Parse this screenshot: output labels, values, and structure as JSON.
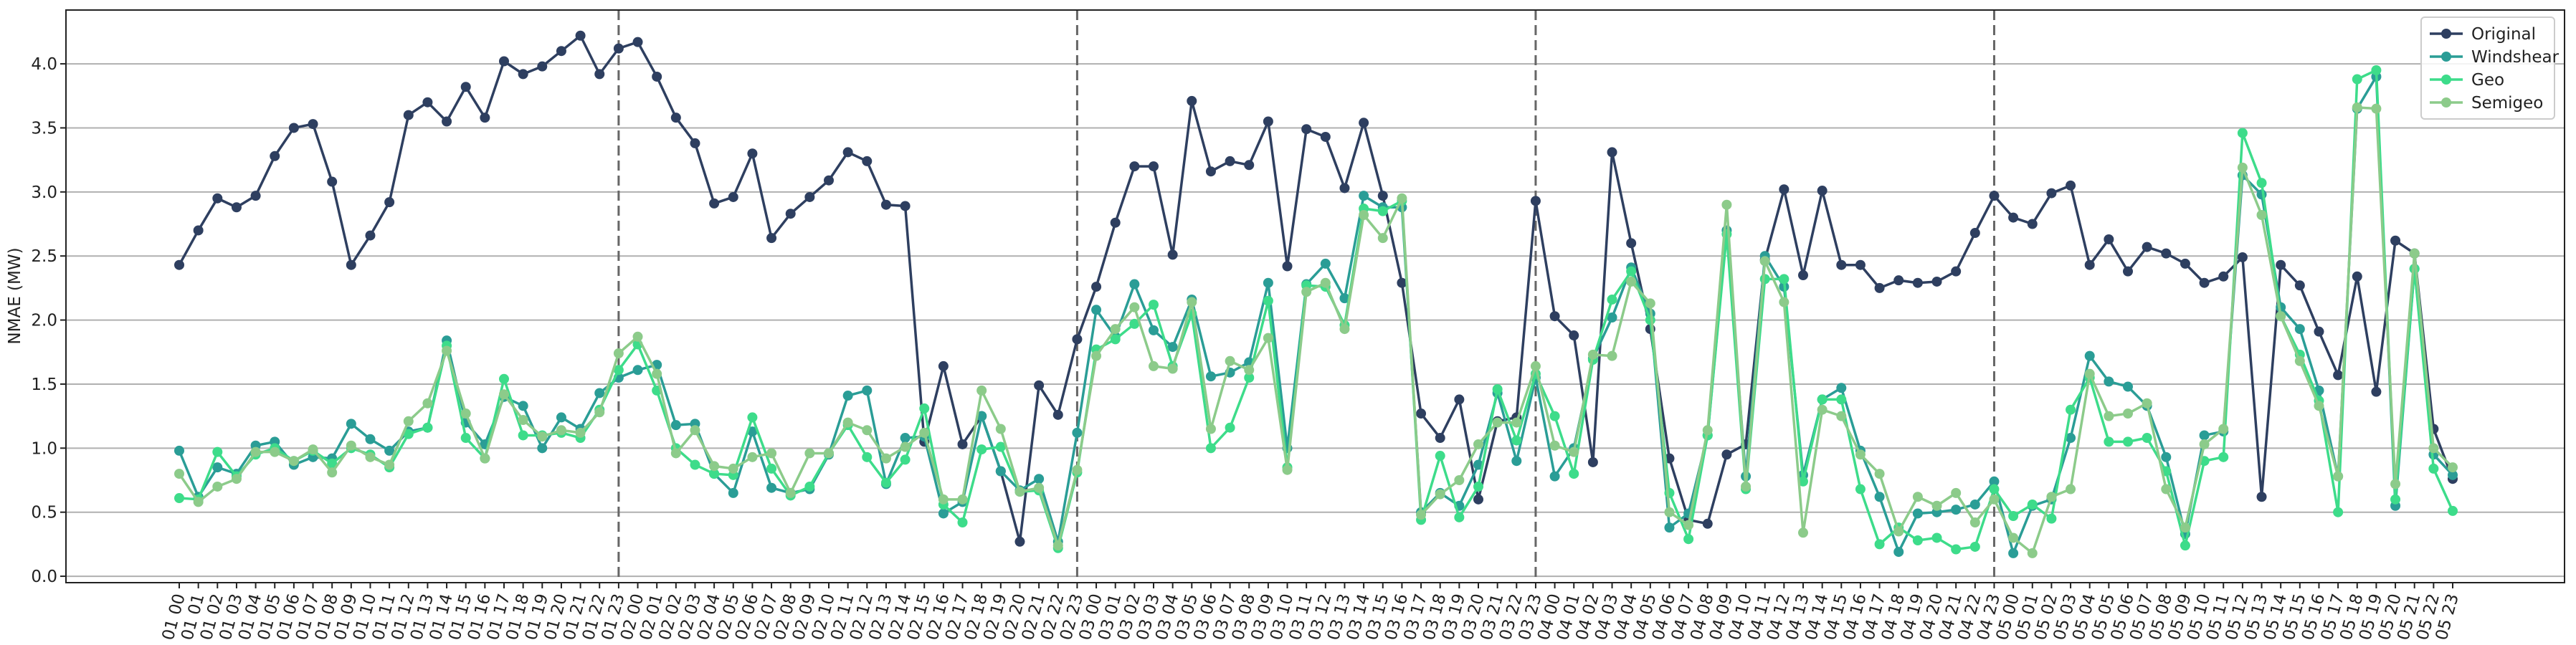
{
  "chart_data": {
    "type": "line",
    "y_label": "NMAE (MW)",
    "categories": [
      "01 00",
      "01 01",
      "01 02",
      "01 03",
      "01 04",
      "01 05",
      "01 06",
      "01 07",
      "01 08",
      "01 09",
      "01 10",
      "01 11",
      "01 12",
      "01 13",
      "01 14",
      "01 15",
      "01 16",
      "01 17",
      "01 18",
      "01 19",
      "01 20",
      "01 21",
      "01 22",
      "01 23",
      "02 00",
      "02 01",
      "02 02",
      "02 03",
      "02 04",
      "02 05",
      "02 06",
      "02 07",
      "02 08",
      "02 09",
      "02 10",
      "02 11",
      "02 12",
      "02 13",
      "02 14",
      "02 15",
      "02 16",
      "02 17",
      "02 18",
      "02 19",
      "02 20",
      "02 21",
      "02 22",
      "02 23",
      "03 00",
      "03 01",
      "03 02",
      "03 03",
      "03 04",
      "03 05",
      "03 06",
      "03 07",
      "03 08",
      "03 09",
      "03 10",
      "03 11",
      "03 12",
      "03 13",
      "03 14",
      "03 15",
      "03 16",
      "03 17",
      "03 18",
      "03 19",
      "03 20",
      "03 21",
      "03 22",
      "03 23",
      "04 00",
      "04 01",
      "04 02",
      "04 03",
      "04 04",
      "04 05",
      "04 06",
      "04 07",
      "04 08",
      "04 09",
      "04 10",
      "04 11",
      "04 12",
      "04 13",
      "04 14",
      "04 15",
      "04 16",
      "04 17",
      "04 18",
      "04 19",
      "04 20",
      "04 21",
      "04 22",
      "04 23",
      "05 00",
      "05 01",
      "05 02",
      "05 03",
      "05 04",
      "05 05",
      "05 06",
      "05 07",
      "05 08",
      "05 09",
      "05 10",
      "05 11",
      "05 12",
      "05 13",
      "05 14",
      "05 15",
      "05 16",
      "05 17",
      "05 18",
      "05 19",
      "05 20",
      "05 21",
      "05 22",
      "05 23"
    ],
    "series": [
      {
        "name": "Original",
        "color": "#2e3f60",
        "values": [
          2.43,
          2.7,
          2.95,
          2.88,
          2.97,
          3.28,
          3.5,
          3.53,
          3.08,
          2.43,
          2.66,
          2.92,
          3.6,
          3.7,
          3.55,
          3.82,
          3.58,
          4.02,
          3.92,
          3.98,
          4.1,
          4.22,
          3.92,
          4.12,
          4.17,
          3.9,
          3.58,
          3.38,
          2.91,
          2.96,
          3.3,
          2.64,
          2.83,
          2.96,
          3.09,
          3.31,
          3.24,
          2.9,
          2.89,
          1.05,
          1.64,
          1.03,
          1.25,
          0.82,
          0.27,
          1.49,
          1.26,
          1.85,
          2.26,
          2.76,
          3.2,
          3.2,
          2.51,
          3.71,
          3.16,
          3.24,
          3.21,
          3.55,
          2.42,
          3.49,
          3.43,
          3.03,
          3.54,
          2.97,
          2.29,
          1.27,
          1.08,
          1.38,
          0.6,
          1.21,
          1.24,
          2.93,
          2.03,
          1.88,
          0.89,
          3.31,
          2.6,
          1.93,
          0.92,
          0.44,
          0.41,
          0.95,
          1.03,
          2.47,
          3.02,
          2.35,
          3.01,
          2.43,
          2.43,
          2.25,
          2.31,
          2.29,
          2.3,
          2.38,
          2.68,
          2.97,
          2.8,
          2.75,
          2.99,
          3.05,
          2.43,
          2.63,
          2.38,
          2.57,
          2.52,
          2.44,
          2.29,
          2.34,
          2.49,
          0.62,
          2.43,
          2.27,
          1.91,
          1.57,
          2.34,
          1.44,
          2.62,
          2.52,
          1.15,
          0.76
        ]
      },
      {
        "name": "Windshear",
        "color": "#2a9d96",
        "values": [
          0.98,
          0.62,
          0.85,
          0.8,
          1.02,
          1.05,
          0.87,
          0.93,
          0.92,
          1.19,
          1.07,
          0.98,
          1.13,
          1.16,
          1.84,
          1.2,
          1.03,
          1.4,
          1.33,
          1.0,
          1.24,
          1.15,
          1.43,
          1.55,
          1.61,
          1.65,
          1.18,
          1.19,
          0.8,
          0.65,
          1.13,
          0.69,
          0.65,
          0.68,
          0.95,
          1.41,
          1.45,
          0.72,
          1.08,
          1.09,
          0.49,
          0.58,
          1.25,
          0.82,
          0.67,
          0.76,
          0.27,
          1.12,
          2.08,
          1.87,
          2.28,
          1.92,
          1.79,
          2.16,
          1.56,
          1.59,
          1.67,
          2.29,
          1.0,
          2.28,
          2.44,
          2.17,
          2.97,
          2.88,
          2.88,
          0.5,
          0.65,
          0.55,
          0.87,
          1.43,
          0.9,
          1.55,
          0.78,
          1.0,
          1.7,
          2.02,
          2.41,
          2.05,
          0.38,
          0.49,
          1.1,
          2.7,
          0.78,
          2.5,
          2.26,
          0.79,
          1.38,
          1.47,
          0.98,
          0.62,
          0.19,
          0.49,
          0.5,
          0.52,
          0.56,
          0.74,
          0.18,
          0.55,
          0.6,
          1.08,
          1.72,
          1.52,
          1.48,
          1.33,
          0.93,
          0.33,
          1.1,
          1.13,
          3.13,
          2.98,
          2.1,
          1.93,
          1.45,
          0.78,
          3.65,
          3.9,
          0.55,
          2.4,
          0.95,
          0.79
        ]
      },
      {
        "name": "Geo",
        "color": "#3ddc8a",
        "values": [
          0.61,
          0.6,
          0.97,
          0.78,
          0.95,
          1.0,
          0.9,
          0.98,
          0.88,
          1.0,
          0.95,
          0.85,
          1.11,
          1.16,
          1.8,
          1.08,
          0.92,
          1.54,
          1.1,
          1.1,
          1.12,
          1.08,
          1.3,
          1.61,
          1.81,
          1.45,
          1.0,
          0.87,
          0.8,
          0.79,
          1.24,
          0.84,
          0.63,
          0.7,
          0.96,
          1.18,
          0.93,
          0.73,
          0.91,
          1.31,
          0.56,
          0.42,
          0.99,
          1.01,
          0.66,
          0.67,
          0.22,
          0.81,
          1.77,
          1.85,
          1.97,
          2.12,
          1.64,
          2.05,
          1.0,
          1.16,
          1.55,
          2.15,
          0.85,
          2.27,
          2.26,
          1.96,
          2.87,
          2.85,
          2.93,
          0.44,
          0.94,
          0.46,
          0.7,
          1.46,
          1.06,
          1.58,
          1.25,
          0.8,
          1.69,
          2.16,
          2.38,
          2.0,
          0.65,
          0.29,
          1.1,
          2.67,
          0.68,
          2.32,
          2.32,
          0.74,
          1.38,
          1.38,
          0.68,
          0.25,
          0.38,
          0.28,
          0.3,
          0.21,
          0.23,
          0.68,
          0.47,
          0.56,
          0.45,
          1.3,
          1.55,
          1.05,
          1.05,
          1.08,
          0.82,
          0.24,
          0.9,
          0.93,
          3.46,
          3.07,
          2.03,
          1.73,
          1.37,
          0.5,
          3.88,
          3.95,
          0.6,
          2.4,
          0.84,
          0.51
        ]
      },
      {
        "name": "Semigeo",
        "color": "#8ccb8a",
        "values": [
          0.8,
          0.58,
          0.7,
          0.76,
          0.97,
          0.97,
          0.9,
          0.99,
          0.81,
          1.02,
          0.93,
          0.87,
          1.21,
          1.35,
          1.76,
          1.27,
          0.92,
          1.42,
          1.22,
          1.09,
          1.14,
          1.12,
          1.28,
          1.74,
          1.87,
          1.58,
          0.96,
          1.14,
          0.86,
          0.84,
          0.93,
          0.96,
          0.65,
          0.96,
          0.96,
          1.2,
          1.14,
          0.92,
          1.01,
          1.12,
          0.6,
          0.6,
          1.45,
          1.15,
          0.66,
          0.69,
          0.24,
          0.83,
          1.72,
          1.93,
          2.1,
          1.64,
          1.62,
          2.14,
          1.15,
          1.68,
          1.61,
          1.86,
          0.83,
          2.22,
          2.29,
          1.93,
          2.82,
          2.64,
          2.95,
          0.48,
          0.64,
          0.75,
          1.03,
          1.2,
          1.2,
          1.64,
          1.02,
          0.97,
          1.73,
          1.72,
          2.3,
          2.13,
          0.5,
          0.4,
          1.14,
          2.9,
          0.7,
          2.46,
          2.14,
          0.34,
          1.3,
          1.25,
          0.95,
          0.8,
          0.35,
          0.62,
          0.55,
          0.65,
          0.42,
          0.6,
          0.3,
          0.18,
          0.62,
          0.68,
          1.58,
          1.25,
          1.27,
          1.35,
          0.68,
          0.38,
          1.03,
          1.15,
          3.19,
          2.82,
          2.03,
          1.68,
          1.33,
          0.78,
          3.66,
          3.65,
          0.72,
          2.52,
          1.0,
          0.85
        ]
      }
    ],
    "vlines": [
      "01 23",
      "02 23",
      "03 23",
      "04 23"
    ],
    "ylim": [
      -0.05,
      4.42
    ],
    "yticks": [
      {
        "value": 0,
        "label": "0.0"
      },
      0.5,
      {
        "value": 1,
        "label": "1.0"
      },
      1.5,
      {
        "value": 2,
        "label": "2.0"
      },
      2.5,
      {
        "value": 3,
        "label": "3.0"
      },
      3.5,
      {
        "value": 4,
        "label": "4.0"
      }
    ],
    "grid": true,
    "legend": "upper right"
  }
}
